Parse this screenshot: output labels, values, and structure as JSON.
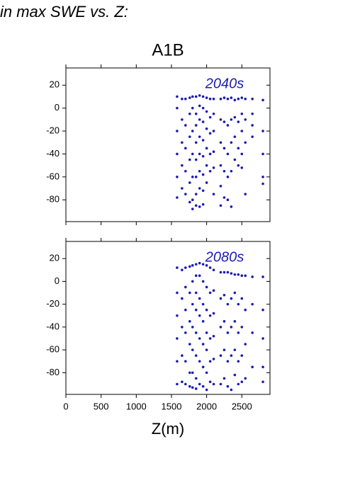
{
  "title": "in max SWE vs. Z:",
  "subtitle": "A1B",
  "xlabel": "Z(m)",
  "chart_data": [
    {
      "type": "scatter",
      "annotation": "2040s",
      "color": "#1c1cb4",
      "xlim": [
        0,
        2900
      ],
      "xticks": [
        0,
        500,
        1000,
        1500,
        2000,
        2500
      ],
      "ylim": [
        -99,
        35
      ],
      "yticks": [
        20,
        0,
        -20,
        -40,
        -60,
        -80
      ],
      "x": [
        1580,
        1580,
        1580,
        1580,
        1580,
        1580,
        1650,
        1650,
        1650,
        1650,
        1650,
        1700,
        1700,
        1700,
        1700,
        1700,
        1760,
        1760,
        1760,
        1760,
        1760,
        1760,
        1800,
        1800,
        1800,
        1800,
        1800,
        1800,
        1800,
        1850,
        1850,
        1850,
        1850,
        1850,
        1850,
        1850,
        1850,
        1900,
        1900,
        1900,
        1900,
        1900,
        1900,
        1900,
        1900,
        1950,
        1950,
        1950,
        1950,
        1950,
        1950,
        1950,
        1950,
        2000,
        2000,
        2000,
        2000,
        2000,
        2000,
        2050,
        2050,
        2050,
        2050,
        2050,
        2100,
        2100,
        2100,
        2100,
        2100,
        2100,
        2200,
        2200,
        2200,
        2200,
        2200,
        2200,
        2250,
        2250,
        2250,
        2250,
        2250,
        2300,
        2300,
        2300,
        2300,
        2300,
        2350,
        2350,
        2350,
        2350,
        2350,
        2400,
        2400,
        2400,
        2400,
        2450,
        2450,
        2450,
        2450,
        2500,
        2500,
        2500,
        2500,
        2500,
        2550,
        2550,
        2550,
        2550,
        2650,
        2650,
        2650,
        2650,
        2800,
        2800,
        2800,
        2800,
        2800
      ],
      "y": [
        10,
        0,
        -20,
        -40,
        -60,
        -78,
        8,
        -10,
        -30,
        -50,
        -70,
        8,
        -15,
        -35,
        -55,
        -75,
        9,
        -5,
        -25,
        -45,
        -65,
        -82,
        10,
        0,
        -20,
        -40,
        -60,
        -80,
        -88,
        10,
        -5,
        -15,
        -30,
        -45,
        -60,
        -75,
        -85,
        11,
        2,
        -10,
        -25,
        -40,
        -55,
        -70,
        -86,
        10,
        0,
        -12,
        -28,
        -42,
        -58,
        -72,
        -84,
        9,
        -3,
        -18,
        -35,
        -50,
        -65,
        8,
        -8,
        -22,
        -40,
        -55,
        8,
        -5,
        -20,
        -38,
        -52,
        -75,
        8,
        -10,
        -30,
        -50,
        -68,
        -85,
        9,
        -12,
        -35,
        -55,
        -78,
        8,
        -15,
        -40,
        -60,
        -80,
        9,
        -10,
        -30,
        -55,
        -86,
        7,
        -8,
        -25,
        -45,
        8,
        -12,
        -35,
        -50,
        9,
        -5,
        -20,
        -40,
        -52,
        8,
        -10,
        -30,
        -75,
        8,
        -5,
        -15,
        -25,
        7,
        -20,
        -40,
        -60,
        -66
      ]
    },
    {
      "type": "scatter",
      "annotation": "2080s",
      "color": "#1c1cb4",
      "xlim": [
        0,
        2900
      ],
      "xticks": [
        0,
        500,
        1000,
        1500,
        2000,
        2500
      ],
      "ylim": [
        -99,
        35
      ],
      "yticks": [
        20,
        0,
        -20,
        -40,
        -60,
        -80
      ],
      "x": [
        1580,
        1580,
        1580,
        1580,
        1580,
        1580,
        1650,
        1650,
        1650,
        1650,
        1650,
        1700,
        1700,
        1700,
        1700,
        1700,
        1700,
        1760,
        1760,
        1760,
        1760,
        1760,
        1760,
        1800,
        1800,
        1800,
        1800,
        1800,
        1800,
        1800,
        1850,
        1850,
        1850,
        1850,
        1850,
        1850,
        1850,
        1850,
        1900,
        1900,
        1900,
        1900,
        1900,
        1900,
        1900,
        1950,
        1950,
        1950,
        1950,
        1950,
        1950,
        1950,
        2000,
        2000,
        2000,
        2000,
        2000,
        2000,
        2000,
        2050,
        2050,
        2050,
        2050,
        2050,
        2050,
        2100,
        2100,
        2100,
        2100,
        2100,
        2100,
        2200,
        2200,
        2200,
        2200,
        2200,
        2250,
        2250,
        2250,
        2250,
        2250,
        2300,
        2300,
        2300,
        2300,
        2300,
        2350,
        2350,
        2350,
        2350,
        2350,
        2400,
        2400,
        2400,
        2400,
        2400,
        2450,
        2450,
        2450,
        2450,
        2450,
        2500,
        2500,
        2500,
        2500,
        2500,
        2550,
        2550,
        2550,
        2550,
        2650,
        2650,
        2650,
        2650,
        2800,
        2800,
        2800,
        2800,
        2800
      ],
      "y": [
        12,
        -10,
        -30,
        -50,
        -70,
        -90,
        10,
        -15,
        -40,
        -65,
        -88,
        12,
        -5,
        -25,
        -45,
        -70,
        -90,
        13,
        -10,
        -35,
        -55,
        -80,
        -92,
        14,
        0,
        -20,
        -40,
        -60,
        -80,
        -93,
        15,
        5,
        -10,
        -25,
        -45,
        -65,
        -85,
        -94,
        16,
        5,
        -15,
        -30,
        -50,
        -70,
        -90,
        15,
        0,
        -20,
        -35,
        -55,
        -75,
        -92,
        14,
        -5,
        -25,
        -45,
        -60,
        -80,
        -95,
        12,
        -10,
        -30,
        -50,
        -70,
        -88,
        10,
        -8,
        -28,
        -48,
        -68,
        -90,
        8,
        -15,
        -40,
        -65,
        -90,
        8,
        -12,
        -35,
        -60,
        -85,
        8,
        -20,
        -45,
        -70,
        -92,
        7,
        -15,
        -40,
        -65,
        -95,
        6,
        -10,
        -35,
        -60,
        -82,
        6,
        -20,
        -45,
        -70,
        -90,
        5,
        -15,
        -40,
        -65,
        -88,
        5,
        -25,
        -55,
        -85,
        4,
        -20,
        -45,
        -75,
        4,
        -25,
        -50,
        -75,
        -88
      ]
    }
  ]
}
